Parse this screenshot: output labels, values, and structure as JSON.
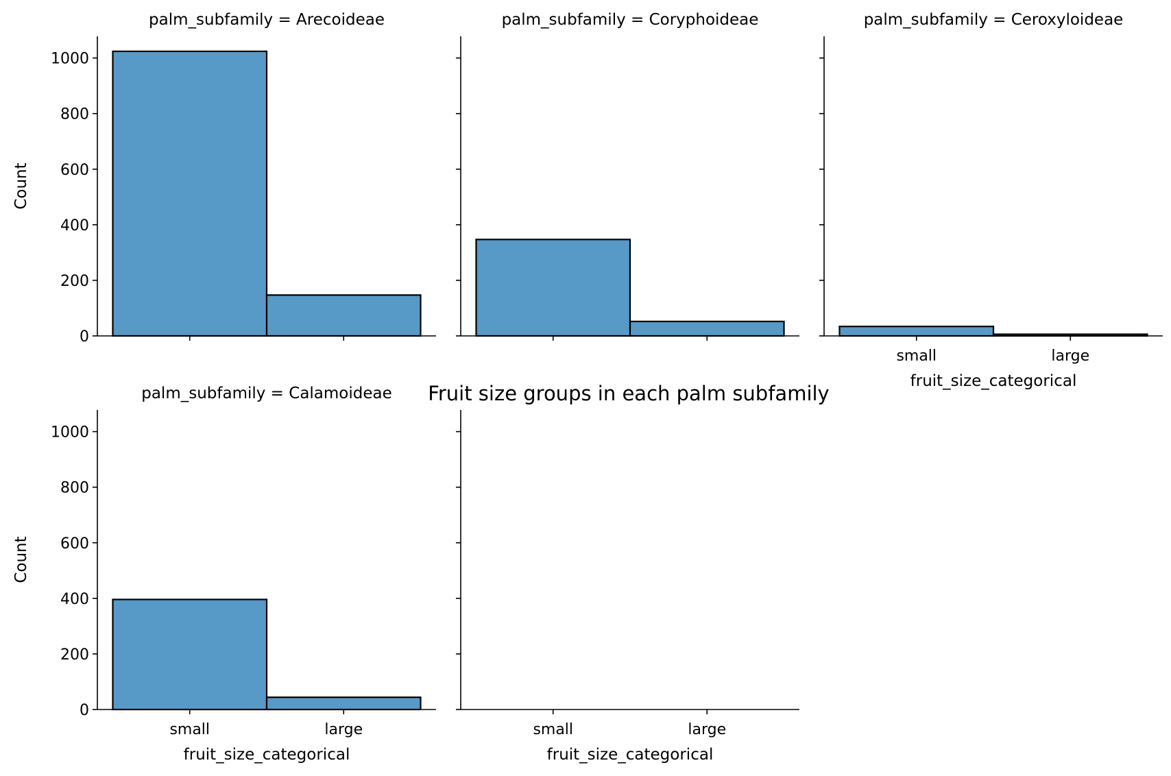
{
  "chart_data": {
    "type": "bar",
    "title": "Fruit size groups in each palm subfamily",
    "xlabel": "fruit_size_categorical",
    "ylabel": "Count",
    "ylim": [
      0,
      1078
    ],
    "yticks": [
      0,
      200,
      400,
      600,
      800,
      1000
    ],
    "categories": [
      "small",
      "large"
    ],
    "bar_color": "#5799c7",
    "edge_color": "#000000",
    "grid": false,
    "facets": [
      {
        "title": "palm_subfamily = Arecoideae",
        "values": [
          1024,
          147
        ]
      },
      {
        "title": "palm_subfamily = Coryphoideae",
        "values": [
          347,
          52
        ]
      },
      {
        "title": "palm_subfamily = Ceroxyloideae",
        "values": [
          34,
          6
        ]
      },
      {
        "title": "palm_subfamily = Calamoideae",
        "values": [
          396,
          44
        ]
      },
      {
        "title": "",
        "values": [
          0,
          0
        ]
      }
    ]
  }
}
